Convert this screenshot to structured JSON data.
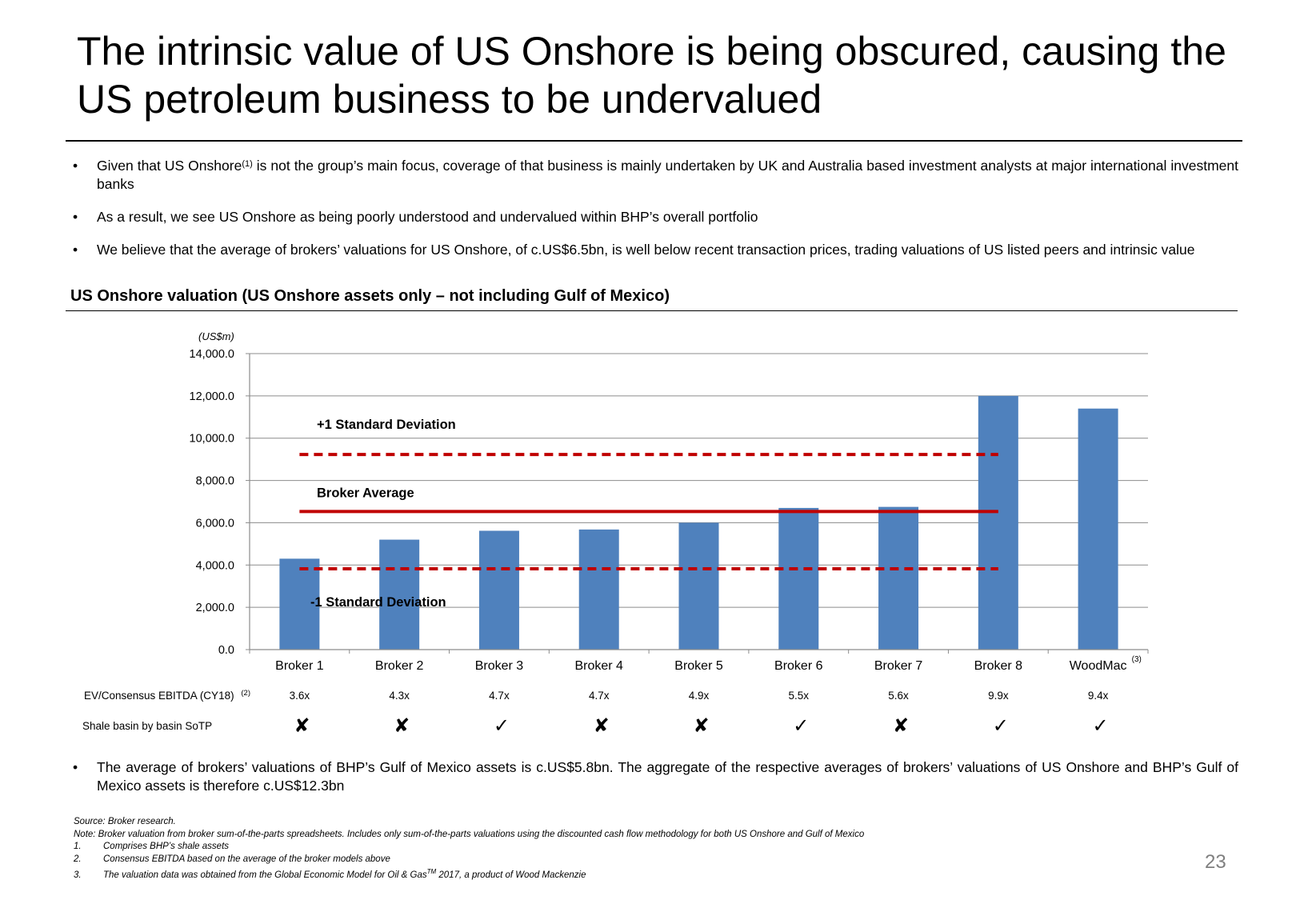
{
  "slide": {
    "title": "The intrinsic value of US Onshore is being obscured, causing the US petroleum business to be undervalued",
    "bullets": [
      {
        "before_sup": "Given that US Onshore",
        "sup": "(1)",
        "after_sup": " is not the group’s main focus, coverage of that business is mainly undertaken by UK and Australia based investment analysts at major international investment banks"
      },
      {
        "text": "As a result, we see US Onshore as being poorly understood and undervalued within BHP’s overall portfolio"
      },
      {
        "text": "We believe that the average of brokers’ valuations for US Onshore, of c.US$6.5bn, is well below recent transaction prices, trading valuations of US listed peers and intrinsic value"
      }
    ],
    "bullet_symbol": "•",
    "section_title": "US Onshore valuation (US Onshore assets only – not including Gulf of Mexico)",
    "bottom_bullet": "The average of brokers’ valuations of BHP’s Gulf of Mexico assets is c.US$5.8bn. The aggregate of the respective averages of brokers’ valuations of US Onshore and BHP’s Gulf of Mexico assets is therefore c.US$12.3bn",
    "footnotes": {
      "source": "Source: Broker research.",
      "note": "Note: Broker valuation from broker sum-of-the-parts spreadsheets. Includes only sum-of-the-parts valuations using the discounted cash flow methodology for both US Onshore and Gulf of Mexico",
      "items": [
        {
          "num": "1.",
          "text": "Comprises BHP’s shale assets"
        },
        {
          "num": "2.",
          "text": "Consensus EBITDA based on the average of the  broker models above"
        },
        {
          "num": "3.",
          "text_before": "The valuation data was obtained from the Global Economic Model for Oil & Gas",
          "sup": "TM",
          "text_after": " 2017, a product of Wood Mackenzie"
        }
      ]
    },
    "page_number": "23"
  },
  "chart_data": {
    "type": "bar",
    "unit_label": "(US$m)",
    "categories": [
      "Broker 1",
      "Broker 2",
      "Broker 3",
      "Broker 4",
      "Broker 5",
      "Broker 6",
      "Broker 7",
      "Broker 8",
      "WoodMac"
    ],
    "category_superscripts": {
      "WoodMac": "(3)"
    },
    "values": [
      4300,
      5200,
      5620,
      5680,
      6000,
      6700,
      6750,
      12000,
      11400
    ],
    "ylim": [
      0,
      14000
    ],
    "yticks": [
      "0.0",
      "2,000.0",
      "4,000.0",
      "6,000.0",
      "8,000.0",
      "10,000.0",
      "12,000.0",
      "14,000.0"
    ],
    "ytick_values": [
      0,
      2000,
      4000,
      6000,
      8000,
      10000,
      12000,
      14000
    ],
    "gridlines": true,
    "bar_color": "#4F81BD",
    "line_color": "#C00000",
    "reference_lines": [
      {
        "name": "+1 Standard Deviation",
        "value": 9230,
        "style": "dashed"
      },
      {
        "name": "Broker Average",
        "value": 6530,
        "style": "solid"
      },
      {
        "name": "-1 Standard Deviation",
        "value": 3820,
        "style": "dashed"
      }
    ],
    "rows": [
      {
        "label": "EV/Consensus EBITDA (CY18)",
        "label_sup": "(2)",
        "values": [
          "3.6x",
          "4.3x",
          "4.7x",
          "4.7x",
          "4.9x",
          "5.5x",
          "5.6x",
          "9.9x",
          "9.4x"
        ]
      },
      {
        "label": "Shale basin by basin SoTP",
        "values": [
          "✘",
          "✘",
          "✓",
          "✘",
          "✘",
          "✓",
          "✘",
          "✓",
          "✓"
        ]
      }
    ]
  }
}
